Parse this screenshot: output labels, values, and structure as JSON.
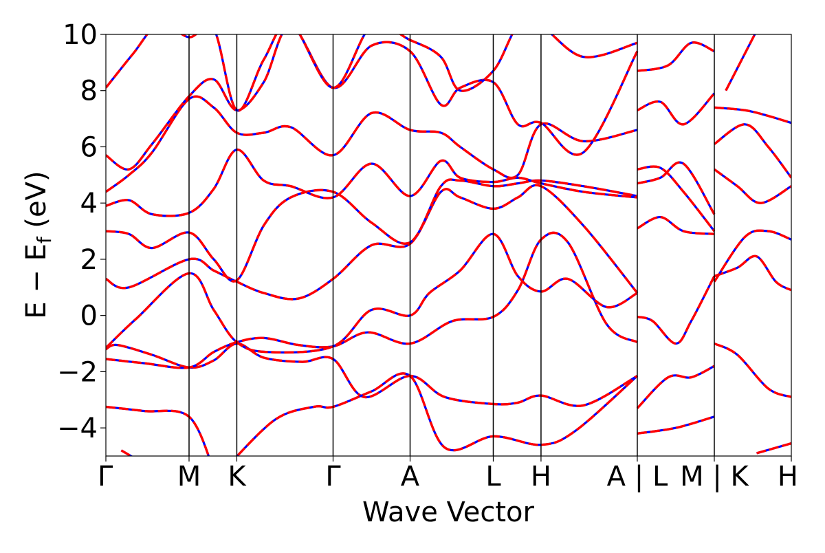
{
  "chart_data": {
    "type": "line",
    "title": "",
    "xlabel": "Wave Vector",
    "ylabel_main": "E − E",
    "ylabel_sub": "f",
    "ylabel_unit": " (eV)",
    "ylim": [
      -5,
      10
    ],
    "yticks": [
      -4,
      -2,
      0,
      2,
      4,
      6,
      8,
      10
    ],
    "ytick_labels": [
      "−4",
      "−2",
      "0",
      "2",
      "4",
      "6",
      "8",
      "10"
    ],
    "k_path_labels": [
      "Γ",
      "M",
      "K",
      "Γ",
      "A",
      "L",
      "H",
      "A | L",
      "M | K",
      "H"
    ],
    "k_label_positions": [
      0,
      1.08,
      1.7,
      2.95,
      3.95,
      5.03,
      5.65,
      6.9,
      7.9,
      8.9
    ],
    "segment_breaks": [
      6.9,
      7.9
    ],
    "grid": false,
    "colors": {
      "solid": "#0000ff",
      "dashed": "#ff0000"
    },
    "series": [
      {
        "kind": "band",
        "pts": [
          [
            0,
            -1.2
          ],
          [
            0.15,
            -1.05
          ],
          [
            0.6,
            -1.4
          ],
          [
            1.08,
            -1.85
          ],
          [
            1.4,
            -1.6
          ],
          [
            1.7,
            -1.0
          ],
          [
            2.05,
            -1.5
          ],
          [
            2.55,
            -1.65
          ],
          [
            2.95,
            -1.55
          ],
          [
            3.35,
            -2.9
          ],
          [
            3.95,
            -2.15
          ],
          [
            4.4,
            -2.9
          ],
          [
            5.03,
            -3.15
          ],
          [
            5.35,
            -3.1
          ],
          [
            5.65,
            -2.85
          ],
          [
            6.2,
            -3.2
          ],
          [
            6.9,
            -2.15
          ]
        ]
      },
      {
        "kind": "band",
        "pts": [
          [
            0,
            -1.55
          ],
          [
            0.5,
            -1.7
          ],
          [
            1.08,
            -1.85
          ],
          [
            1.4,
            -1.3
          ],
          [
            1.7,
            -0.95
          ],
          [
            2.05,
            -0.8
          ],
          [
            2.5,
            -1.05
          ],
          [
            2.95,
            -1.1
          ],
          [
            3.4,
            -0.6
          ],
          [
            3.95,
            -1.0
          ],
          [
            4.5,
            -0.2
          ],
          [
            5.03,
            -0.05
          ],
          [
            5.35,
            0.9
          ],
          [
            5.65,
            2.7
          ],
          [
            6.0,
            2.6
          ],
          [
            6.5,
            -0.3
          ],
          [
            6.9,
            -0.95
          ]
        ]
      },
      {
        "kind": "band",
        "pts": [
          [
            0,
            -1.15
          ],
          [
            0.4,
            -0.1
          ],
          [
            1.08,
            1.5
          ],
          [
            1.4,
            0.2
          ],
          [
            1.7,
            -0.95
          ],
          [
            2.1,
            -1.3
          ],
          [
            2.95,
            -1.1
          ],
          [
            3.45,
            0.2
          ],
          [
            3.95,
            0.0
          ],
          [
            4.2,
            0.8
          ],
          [
            4.6,
            1.6
          ],
          [
            5.03,
            2.9
          ],
          [
            5.35,
            1.4
          ],
          [
            5.65,
            0.85
          ],
          [
            6.0,
            1.3
          ],
          [
            6.5,
            0.3
          ],
          [
            6.9,
            0.8
          ]
        ]
      },
      {
        "kind": "band",
        "pts": [
          [
            0,
            1.3
          ],
          [
            0.3,
            1.0
          ],
          [
            1.08,
            2.0
          ],
          [
            1.4,
            1.6
          ],
          [
            1.7,
            1.2
          ],
          [
            2.05,
            0.8
          ],
          [
            2.5,
            0.6
          ],
          [
            2.95,
            1.3
          ],
          [
            3.45,
            2.5
          ],
          [
            3.95,
            2.55
          ],
          [
            4.35,
            4.4
          ],
          [
            4.6,
            4.2
          ],
          [
            5.03,
            3.8
          ],
          [
            5.35,
            4.2
          ],
          [
            5.65,
            4.6
          ],
          [
            6.2,
            3.2
          ],
          [
            6.9,
            0.8
          ]
        ]
      },
      {
        "kind": "band",
        "pts": [
          [
            0,
            3.0
          ],
          [
            0.3,
            2.9
          ],
          [
            0.6,
            2.4
          ],
          [
            1.08,
            2.95
          ],
          [
            1.4,
            2.0
          ],
          [
            1.7,
            1.25
          ],
          [
            2.05,
            3.2
          ],
          [
            2.4,
            4.2
          ],
          [
            2.95,
            4.4
          ],
          [
            3.45,
            3.3
          ],
          [
            3.95,
            2.6
          ],
          [
            4.35,
            4.6
          ],
          [
            4.6,
            4.8
          ],
          [
            5.03,
            4.6
          ],
          [
            5.35,
            4.7
          ],
          [
            5.65,
            4.8
          ],
          [
            6.2,
            4.6
          ],
          [
            6.9,
            4.25
          ]
        ]
      },
      {
        "kind": "band",
        "pts": [
          [
            0,
            3.9
          ],
          [
            0.3,
            4.1
          ],
          [
            0.6,
            3.6
          ],
          [
            1.08,
            3.65
          ],
          [
            1.4,
            4.5
          ],
          [
            1.7,
            5.9
          ],
          [
            2.05,
            4.8
          ],
          [
            2.4,
            4.6
          ],
          [
            2.95,
            4.2
          ],
          [
            3.45,
            5.4
          ],
          [
            3.95,
            4.25
          ],
          [
            4.35,
            5.5
          ],
          [
            4.6,
            4.9
          ],
          [
            5.03,
            4.75
          ],
          [
            5.35,
            4.9
          ],
          [
            5.65,
            4.7
          ],
          [
            6.2,
            4.4
          ],
          [
            6.9,
            4.2
          ]
        ]
      },
      {
        "kind": "band",
        "pts": [
          [
            0,
            4.4
          ],
          [
            0.3,
            5.0
          ],
          [
            0.6,
            5.8
          ],
          [
            1.08,
            7.7
          ],
          [
            1.4,
            7.4
          ],
          [
            1.7,
            6.5
          ],
          [
            2.05,
            6.5
          ],
          [
            2.4,
            6.7
          ],
          [
            2.95,
            5.7
          ],
          [
            3.45,
            7.2
          ],
          [
            3.95,
            6.6
          ],
          [
            4.35,
            6.5
          ],
          [
            4.6,
            6.0
          ],
          [
            5.03,
            5.2
          ],
          [
            5.35,
            5.0
          ],
          [
            5.65,
            6.8
          ],
          [
            6.2,
            6.2
          ],
          [
            6.9,
            6.6
          ]
        ]
      },
      {
        "kind": "band",
        "pts": [
          [
            0,
            5.7
          ],
          [
            0.3,
            5.2
          ],
          [
            0.6,
            6.1
          ],
          [
            1.08,
            7.8
          ],
          [
            1.4,
            8.4
          ],
          [
            1.7,
            7.3
          ],
          [
            2.05,
            8.3
          ],
          [
            2.4,
            10.3
          ],
          [
            2.95,
            8.1
          ],
          [
            3.45,
            9.6
          ],
          [
            3.95,
            9.4
          ],
          [
            4.35,
            7.5
          ],
          [
            4.6,
            8.1
          ],
          [
            5.03,
            8.3
          ],
          [
            5.35,
            6.8
          ],
          [
            5.65,
            6.85
          ],
          [
            6.2,
            5.8
          ],
          [
            6.9,
            9.4
          ]
        ]
      },
      {
        "kind": "band",
        "pts": [
          [
            0,
            8.1
          ],
          [
            0.35,
            9.3
          ],
          [
            0.7,
            10.4
          ],
          [
            1.08,
            9.9
          ],
          [
            1.4,
            10.2
          ],
          [
            1.7,
            7.3
          ],
          [
            2.05,
            9.1
          ],
          [
            2.4,
            10.4
          ],
          [
            2.95,
            8.1
          ],
          [
            3.45,
            10.3
          ],
          [
            3.95,
            9.8
          ],
          [
            4.35,
            9.2
          ],
          [
            4.6,
            8.0
          ],
          [
            5.03,
            8.7
          ],
          [
            5.35,
            10.3
          ],
          [
            5.65,
            10.3
          ],
          [
            6.2,
            9.2
          ],
          [
            6.9,
            9.7
          ]
        ]
      },
      {
        "kind": "band",
        "pts": [
          [
            0,
            -3.25
          ],
          [
            0.5,
            -3.4
          ],
          [
            1.08,
            -3.6
          ],
          [
            1.4,
            -5.5
          ]
        ]
      },
      {
        "kind": "band",
        "pts": [
          [
            0.2,
            -4.8
          ],
          [
            0.45,
            -5.2
          ]
        ]
      },
      {
        "kind": "band",
        "pts": [
          [
            1.6,
            -5.3
          ],
          [
            2.2,
            -3.7
          ],
          [
            2.7,
            -3.25
          ],
          [
            2.95,
            -3.25
          ],
          [
            3.45,
            -2.7
          ],
          [
            3.95,
            -2.15
          ],
          [
            4.4,
            -4.7
          ],
          [
            5.03,
            -4.3
          ],
          [
            5.65,
            -4.6
          ],
          [
            6.1,
            -4.1
          ],
          [
            6.9,
            -2.15
          ]
        ]
      },
      {
        "kind": "band",
        "pts": [
          [
            6.9,
            4.7
          ],
          [
            7.2,
            4.9
          ],
          [
            7.5,
            5.4
          ],
          [
            7.9,
            3.6
          ]
        ]
      },
      {
        "kind": "band",
        "pts": [
          [
            6.9,
            -0.05
          ],
          [
            7.1,
            -0.2
          ],
          [
            7.4,
            -1.0
          ],
          [
            7.6,
            -0.2
          ],
          [
            7.9,
            1.4
          ]
        ]
      },
      {
        "kind": "band",
        "pts": [
          [
            6.9,
            -3.3
          ],
          [
            7.3,
            -2.2
          ],
          [
            7.6,
            -2.2
          ],
          [
            7.9,
            -1.8
          ]
        ]
      },
      {
        "kind": "band",
        "pts": [
          [
            6.9,
            -4.2
          ],
          [
            7.4,
            -4.0
          ],
          [
            7.9,
            -3.6
          ]
        ]
      },
      {
        "kind": "band",
        "pts": [
          [
            6.9,
            3.1
          ],
          [
            7.2,
            3.5
          ],
          [
            7.5,
            3.0
          ],
          [
            7.9,
            2.9
          ]
        ]
      },
      {
        "kind": "band",
        "pts": [
          [
            6.9,
            5.2
          ],
          [
            7.2,
            5.25
          ],
          [
            7.5,
            4.4
          ],
          [
            7.9,
            3.0
          ]
        ]
      },
      {
        "kind": "band",
        "pts": [
          [
            6.9,
            8.7
          ],
          [
            7.3,
            8.9
          ],
          [
            7.6,
            9.7
          ],
          [
            7.9,
            9.4
          ]
        ]
      },
      {
        "kind": "band",
        "pts": [
          [
            6.9,
            7.3
          ],
          [
            7.2,
            7.6
          ],
          [
            7.5,
            6.8
          ],
          [
            7.9,
            7.9
          ]
        ]
      },
      {
        "kind": "band",
        "pts": [
          [
            7.9,
            -1.0
          ],
          [
            8.2,
            -1.4
          ],
          [
            8.6,
            -2.6
          ],
          [
            8.9,
            -2.9
          ]
        ]
      },
      {
        "kind": "band",
        "pts": [
          [
            7.9,
            1.4
          ],
          [
            8.2,
            1.7
          ],
          [
            8.45,
            2.1
          ],
          [
            8.7,
            1.2
          ],
          [
            8.9,
            0.9
          ]
        ]
      },
      {
        "kind": "band",
        "pts": [
          [
            7.9,
            5.2
          ],
          [
            8.2,
            4.6
          ],
          [
            8.5,
            4.0
          ],
          [
            8.9,
            4.6
          ]
        ]
      },
      {
        "kind": "band",
        "pts": [
          [
            7.9,
            6.1
          ],
          [
            8.3,
            6.8
          ],
          [
            8.6,
            6.0
          ],
          [
            8.9,
            4.9
          ]
        ]
      },
      {
        "kind": "band",
        "pts": [
          [
            7.9,
            7.4
          ],
          [
            8.3,
            7.3
          ],
          [
            8.6,
            7.1
          ],
          [
            8.9,
            6.85
          ]
        ]
      },
      {
        "kind": "band",
        "pts": [
          [
            7.9,
            1.2
          ],
          [
            8.3,
            2.8
          ],
          [
            8.6,
            3.0
          ],
          [
            8.9,
            2.7
          ]
        ]
      },
      {
        "kind": "band",
        "pts": [
          [
            8.45,
            -4.9
          ],
          [
            8.9,
            -4.55
          ]
        ]
      },
      {
        "kind": "band",
        "pts": [
          [
            8.05,
            8.0
          ],
          [
            8.5,
            10.4
          ]
        ]
      }
    ]
  }
}
